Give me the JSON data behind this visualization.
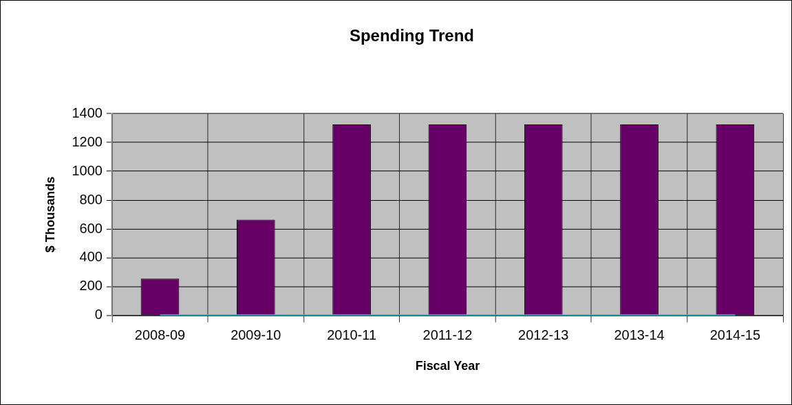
{
  "chart_data": {
    "type": "bar",
    "title": "Spending Trend",
    "xlabel": "Fiscal Year",
    "ylabel": "$ Thousands",
    "categories": [
      "2008-09",
      "2009-10",
      "2010-11",
      "2011-12",
      "2012-13",
      "2013-14",
      "2014-15"
    ],
    "series": [
      {
        "color": "#660066",
        "values": [
          255,
          665,
          1325,
          1325,
          1325,
          1325,
          1325
        ]
      },
      {
        "type": "line",
        "color": "#33bbdd",
        "values": [
          0,
          0,
          0,
          0,
          0,
          0,
          0
        ]
      }
    ],
    "ylim": [
      0,
      1400
    ],
    "yticks": [
      0,
      200,
      400,
      600,
      800,
      1000,
      1200,
      1400
    ],
    "grid": true,
    "legend": false,
    "marker": "none"
  }
}
